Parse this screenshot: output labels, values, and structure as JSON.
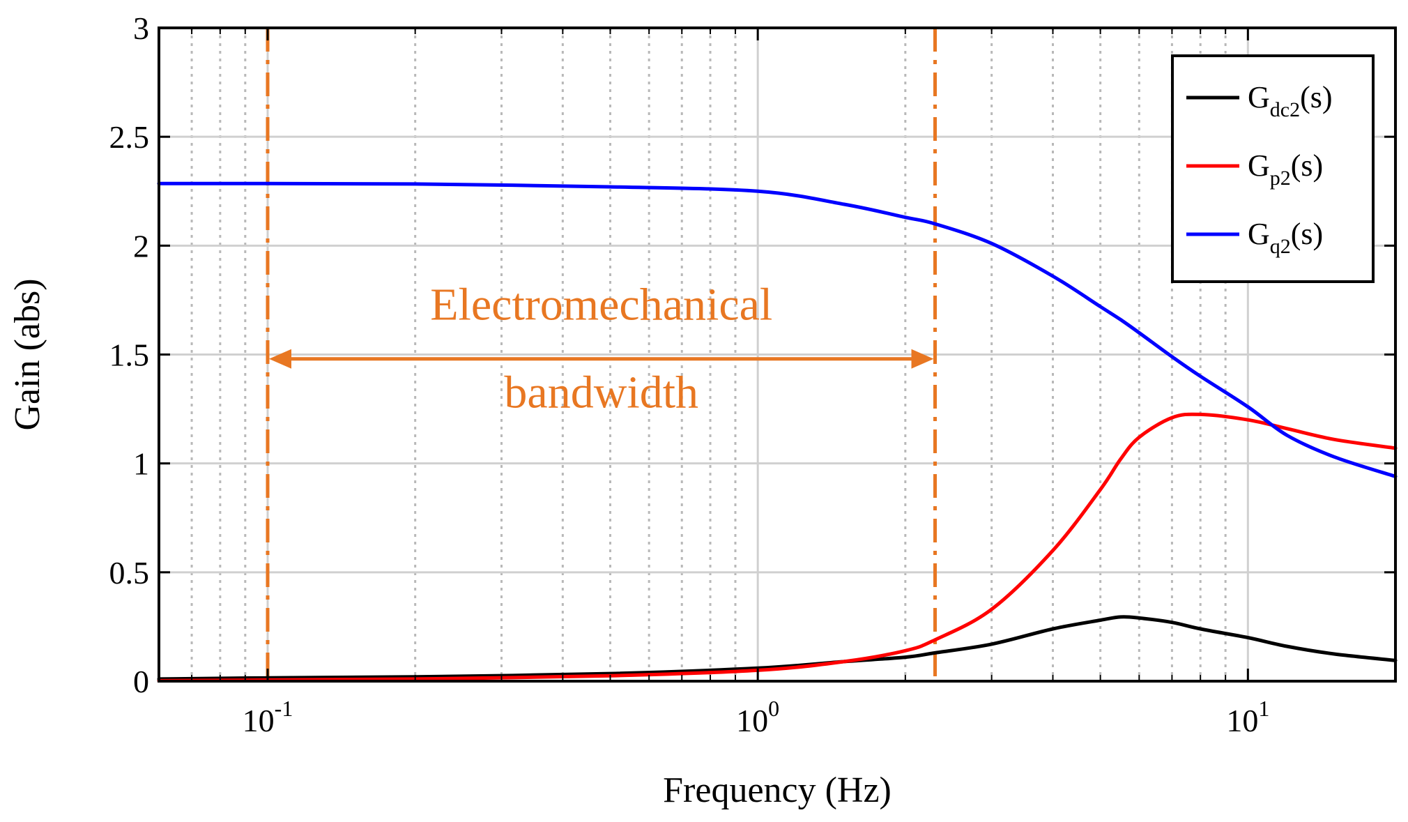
{
  "chart_data": {
    "type": "line",
    "title": "",
    "xlabel": "Frequency (Hz)",
    "ylabel": "Gain (abs)",
    "xscale": "log",
    "xlim": [
      0.06,
      20
    ],
    "ylim": [
      0,
      3
    ],
    "grid": true,
    "legend_location": "top-right",
    "x_ticks": [
      {
        "value": 0.1,
        "base": "10",
        "exp": "-1"
      },
      {
        "value": 1,
        "base": "10",
        "exp": "0"
      },
      {
        "value": 10,
        "base": "10",
        "exp": "1"
      }
    ],
    "y_ticks": [
      {
        "value": 0,
        "label": "0"
      },
      {
        "value": 0.5,
        "label": "0.5"
      },
      {
        "value": 1,
        "label": "1"
      },
      {
        "value": 1.5,
        "label": "1.5"
      },
      {
        "value": 2,
        "label": "2"
      },
      {
        "value": 2.5,
        "label": "2.5"
      },
      {
        "value": 3,
        "label": "3"
      }
    ],
    "x": [
      0.06,
      0.1,
      0.2,
      0.5,
      1,
      1.5,
      2,
      2.3,
      3,
      4,
      5,
      5.5,
      6,
      7,
      8,
      10,
      12,
      15,
      20
    ],
    "series": [
      {
        "name": "G_dc2(s)",
        "label_main": "G",
        "label_sub": "dc2",
        "label_tail": "(s)",
        "color": "#000000",
        "values": [
          0.01,
          0.015,
          0.02,
          0.035,
          0.06,
          0.09,
          0.11,
          0.13,
          0.17,
          0.24,
          0.28,
          0.295,
          0.29,
          0.27,
          0.24,
          0.2,
          0.16,
          0.125,
          0.095
        ]
      },
      {
        "name": "G_p2(s)",
        "label_main": "G",
        "label_sub": "p2",
        "label_tail": "(s)",
        "color": "#ff0000",
        "values": [
          0.002,
          0.005,
          0.01,
          0.025,
          0.05,
          0.09,
          0.14,
          0.19,
          0.33,
          0.6,
          0.88,
          1.02,
          1.12,
          1.21,
          1.225,
          1.2,
          1.16,
          1.11,
          1.07
        ]
      },
      {
        "name": "G_q2(s)",
        "label_main": "G",
        "label_sub": "q2",
        "label_tail": "(s)",
        "color": "#0000ff",
        "values": [
          2.285,
          2.285,
          2.283,
          2.27,
          2.25,
          2.19,
          2.13,
          2.1,
          2.01,
          1.86,
          1.72,
          1.66,
          1.6,
          1.49,
          1.4,
          1.26,
          1.13,
          1.03,
          0.94
        ]
      }
    ],
    "annotations": {
      "text_line1": "Electromechanical",
      "text_line2": "bandwidth",
      "color": "#e87722",
      "bandwidth_start": 0.1,
      "bandwidth_end": 2.3,
      "arrow_y": 1.48
    }
  }
}
